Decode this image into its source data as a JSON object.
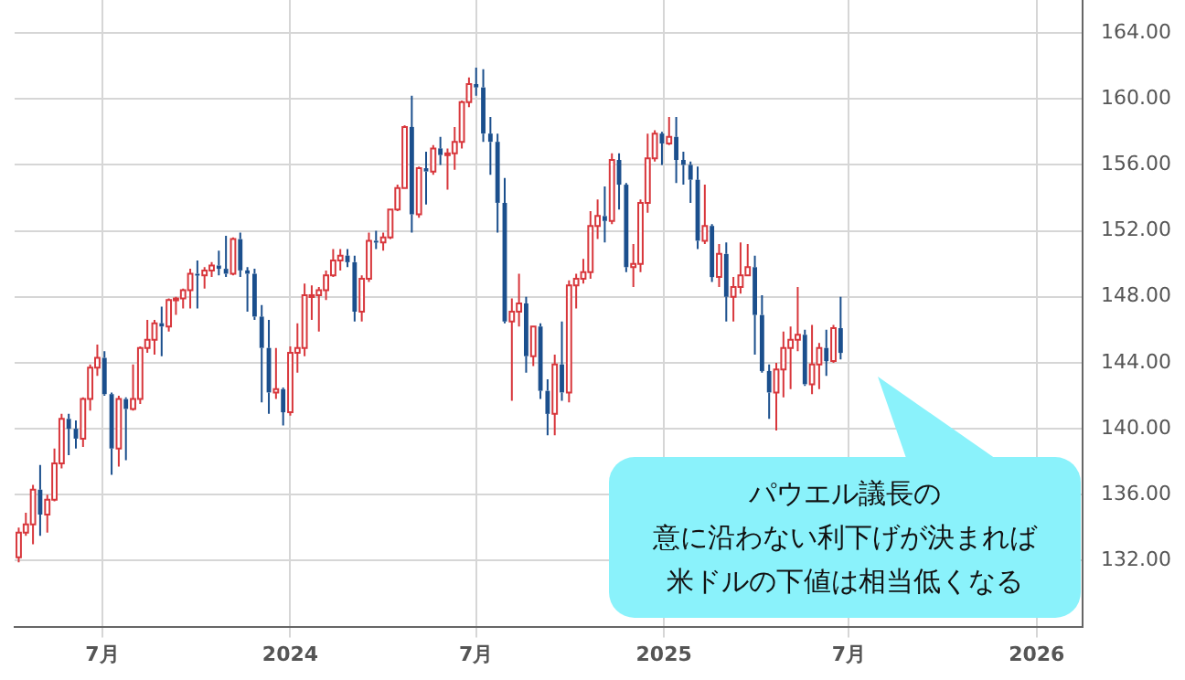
{
  "chart_data": {
    "type": "candlestick",
    "x": [
      "2023-04-10",
      "2023-04-17",
      "2023-04-24",
      "2023-05-01",
      "2023-05-08",
      "2023-05-15",
      "2023-05-22",
      "2023-05-29",
      "2023-06-05",
      "2023-06-12",
      "2023-06-19",
      "2023-06-26",
      "2023-07-03",
      "2023-07-10",
      "2023-07-17",
      "2023-07-24",
      "2023-07-31",
      "2023-08-07",
      "2023-08-14",
      "2023-08-21",
      "2023-08-28",
      "2023-09-04",
      "2023-09-11",
      "2023-09-18",
      "2023-09-25",
      "2023-10-02",
      "2023-10-09",
      "2023-10-16",
      "2023-10-23",
      "2023-10-30",
      "2023-11-06",
      "2023-11-13",
      "2023-11-20",
      "2023-11-27",
      "2023-12-04",
      "2023-12-11",
      "2023-12-18",
      "2023-12-25",
      "2024-01-01",
      "2024-01-08",
      "2024-01-15",
      "2024-01-22",
      "2024-01-29",
      "2024-02-05",
      "2024-02-12",
      "2024-02-19",
      "2024-02-26",
      "2024-03-04",
      "2024-03-11",
      "2024-03-18",
      "2024-03-25",
      "2024-04-01",
      "2024-04-08",
      "2024-04-15",
      "2024-04-22",
      "2024-04-29",
      "2024-05-06",
      "2024-05-13",
      "2024-05-20",
      "2024-05-27",
      "2024-06-03",
      "2024-06-10",
      "2024-06-17",
      "2024-06-24",
      "2024-07-01",
      "2024-07-08",
      "2024-07-15",
      "2024-07-22",
      "2024-07-29",
      "2024-08-05",
      "2024-08-12",
      "2024-08-19",
      "2024-08-26",
      "2024-09-02",
      "2024-09-09",
      "2024-09-16",
      "2024-09-23",
      "2024-09-30",
      "2024-10-07",
      "2024-10-14",
      "2024-10-21",
      "2024-10-28",
      "2024-11-04",
      "2024-11-11",
      "2024-11-18",
      "2024-11-25",
      "2024-12-02",
      "2024-12-09",
      "2024-12-16",
      "2024-12-23",
      "2024-12-30",
      "2025-01-06",
      "2025-01-13",
      "2025-01-20",
      "2025-01-27",
      "2025-02-03",
      "2025-02-10",
      "2025-02-17",
      "2025-02-24",
      "2025-03-03",
      "2025-03-10",
      "2025-03-17",
      "2025-03-24",
      "2025-03-31",
      "2025-04-07",
      "2025-04-14",
      "2025-04-21",
      "2025-04-28",
      "2025-05-05",
      "2025-05-12",
      "2025-05-19",
      "2025-05-26",
      "2025-06-02",
      "2025-06-09",
      "2025-06-16",
      "2025-06-23"
    ],
    "ohlc": [
      [
        132.2,
        134.0,
        131.9,
        133.7
      ],
      [
        133.7,
        134.9,
        133.5,
        134.2
      ],
      [
        134.2,
        136.6,
        133.0,
        136.3
      ],
      [
        136.3,
        137.8,
        133.5,
        134.8
      ],
      [
        134.8,
        136.0,
        133.7,
        135.7
      ],
      [
        135.7,
        138.8,
        135.6,
        137.9
      ],
      [
        137.9,
        140.9,
        137.6,
        140.6
      ],
      [
        140.6,
        140.9,
        138.4,
        140.0
      ],
      [
        140.0,
        140.5,
        138.8,
        139.4
      ],
      [
        139.4,
        141.9,
        138.9,
        141.8
      ],
      [
        141.8,
        143.9,
        141.1,
        143.7
      ],
      [
        143.7,
        145.1,
        143.2,
        144.3
      ],
      [
        144.3,
        144.7,
        142.0,
        142.1
      ],
      [
        142.1,
        142.2,
        137.2,
        138.8
      ],
      [
        138.8,
        142.0,
        137.7,
        141.8
      ],
      [
        141.8,
        141.9,
        138.1,
        141.2
      ],
      [
        141.2,
        143.9,
        141.1,
        141.8
      ],
      [
        141.8,
        145.0,
        141.5,
        144.9
      ],
      [
        144.9,
        146.6,
        144.6,
        145.4
      ],
      [
        145.4,
        146.6,
        144.5,
        146.4
      ],
      [
        146.4,
        147.4,
        144.4,
        146.2
      ],
      [
        146.2,
        147.9,
        145.9,
        147.8
      ],
      [
        147.8,
        148.0,
        146.9,
        147.9
      ],
      [
        147.9,
        148.5,
        147.3,
        148.4
      ],
      [
        148.4,
        149.7,
        147.3,
        149.4
      ],
      [
        149.4,
        150.2,
        147.3,
        149.3
      ],
      [
        149.3,
        149.8,
        148.5,
        149.6
      ],
      [
        149.6,
        150.1,
        149.2,
        149.9
      ],
      [
        149.9,
        150.8,
        149.3,
        149.7
      ],
      [
        149.7,
        151.7,
        149.2,
        149.4
      ],
      [
        149.4,
        151.6,
        149.3,
        151.5
      ],
      [
        151.5,
        151.9,
        149.2,
        149.6
      ],
      [
        149.6,
        149.8,
        147.1,
        149.4
      ],
      [
        149.4,
        149.7,
        146.6,
        146.8
      ],
      [
        146.8,
        147.5,
        141.6,
        144.9
      ],
      [
        144.9,
        146.6,
        140.9,
        142.2
      ],
      [
        142.2,
        144.9,
        141.8,
        142.4
      ],
      [
        142.4,
        142.5,
        140.2,
        141.0
      ],
      [
        141.0,
        145.0,
        140.8,
        144.6
      ],
      [
        144.6,
        146.4,
        143.4,
        144.9
      ],
      [
        144.9,
        148.8,
        144.4,
        148.1
      ],
      [
        148.1,
        148.7,
        146.6,
        148.1
      ],
      [
        148.1,
        148.6,
        145.9,
        148.4
      ],
      [
        148.4,
        149.6,
        147.8,
        149.3
      ],
      [
        149.3,
        150.9,
        149.2,
        150.2
      ],
      [
        150.2,
        150.9,
        149.6,
        150.5
      ],
      [
        150.5,
        150.9,
        149.8,
        150.1
      ],
      [
        150.1,
        150.5,
        146.5,
        147.1
      ],
      [
        147.1,
        149.3,
        146.5,
        149.1
      ],
      [
        149.1,
        151.9,
        148.9,
        151.4
      ],
      [
        151.4,
        152.0,
        150.9,
        151.3
      ],
      [
        151.3,
        151.9,
        150.8,
        151.6
      ],
      [
        151.6,
        153.3,
        151.5,
        153.3
      ],
      [
        153.3,
        154.8,
        153.2,
        154.6
      ],
      [
        154.6,
        158.4,
        154.6,
        158.3
      ],
      [
        158.3,
        160.2,
        151.9,
        153.0
      ],
      [
        153.0,
        155.9,
        152.8,
        155.8
      ],
      [
        155.8,
        156.8,
        153.6,
        155.6
      ],
      [
        155.6,
        157.2,
        155.4,
        157.0
      ],
      [
        157.0,
        157.7,
        156.0,
        156.6
      ],
      [
        156.6,
        157.0,
        154.5,
        156.7
      ],
      [
        156.7,
        158.3,
        155.7,
        157.4
      ],
      [
        157.4,
        159.9,
        157.0,
        159.8
      ],
      [
        159.8,
        161.3,
        159.5,
        160.9
      ],
      [
        160.9,
        161.9,
        160.2,
        160.7
      ],
      [
        160.7,
        161.8,
        157.4,
        157.9
      ],
      [
        157.9,
        158.9,
        155.4,
        157.4
      ],
      [
        157.4,
        157.9,
        151.9,
        153.7
      ],
      [
        153.7,
        155.2,
        146.4,
        146.5
      ],
      [
        146.5,
        147.9,
        141.7,
        147.1
      ],
      [
        147.1,
        149.4,
        146.2,
        147.6
      ],
      [
        147.6,
        148.0,
        143.4,
        144.4
      ],
      [
        144.4,
        146.2,
        143.8,
        146.2
      ],
      [
        146.2,
        146.4,
        141.8,
        142.3
      ],
      [
        142.3,
        143.0,
        139.6,
        140.9
      ],
      [
        140.9,
        144.5,
        139.6,
        143.9
      ],
      [
        143.9,
        146.5,
        141.7,
        142.2
      ],
      [
        142.2,
        149.0,
        141.6,
        148.7
      ],
      [
        148.7,
        149.4,
        147.3,
        149.1
      ],
      [
        149.1,
        150.3,
        148.8,
        149.5
      ],
      [
        149.5,
        153.2,
        149.1,
        152.3
      ],
      [
        152.3,
        153.9,
        151.5,
        152.9
      ],
      [
        152.9,
        154.7,
        151.3,
        152.6
      ],
      [
        152.6,
        156.7,
        152.4,
        156.3
      ],
      [
        156.3,
        156.7,
        153.3,
        154.8
      ],
      [
        154.8,
        154.9,
        149.5,
        149.8
      ],
      [
        149.8,
        151.2,
        148.6,
        150.0
      ],
      [
        150.0,
        153.9,
        149.5,
        153.7
      ],
      [
        153.7,
        157.9,
        153.1,
        156.4
      ],
      [
        156.4,
        158.1,
        156.2,
        157.9
      ],
      [
        157.9,
        158.0,
        156.0,
        157.3
      ],
      [
        157.3,
        158.9,
        157.2,
        157.7
      ],
      [
        157.7,
        158.9,
        154.9,
        156.3
      ],
      [
        156.3,
        156.8,
        154.8,
        156.0
      ],
      [
        156.0,
        156.2,
        153.7,
        155.1
      ],
      [
        155.1,
        155.9,
        150.9,
        151.4
      ],
      [
        151.4,
        154.8,
        151.2,
        152.3
      ],
      [
        152.3,
        152.4,
        148.9,
        149.2
      ],
      [
        149.2,
        151.2,
        148.6,
        150.6
      ],
      [
        150.6,
        151.3,
        146.5,
        148.0
      ],
      [
        148.0,
        149.2,
        146.5,
        148.6
      ],
      [
        148.6,
        151.3,
        148.2,
        149.3
      ],
      [
        149.3,
        151.2,
        149.3,
        149.8
      ],
      [
        149.8,
        150.5,
        144.5,
        146.9
      ],
      [
        146.9,
        148.1,
        143.4,
        143.5
      ],
      [
        143.5,
        143.9,
        140.6,
        142.2
      ],
      [
        142.2,
        144.0,
        139.9,
        143.6
      ],
      [
        143.6,
        145.9,
        141.9,
        144.9
      ],
      [
        144.9,
        146.2,
        142.4,
        145.4
      ],
      [
        145.4,
        148.6,
        144.7,
        145.7
      ],
      [
        145.7,
        146.0,
        142.6,
        142.7
      ],
      [
        142.7,
        146.3,
        142.1,
        143.9
      ],
      [
        143.9,
        145.2,
        142.4,
        144.9
      ],
      [
        144.9,
        146.0,
        143.2,
        144.1
      ],
      [
        144.1,
        146.3,
        144.0,
        146.1
      ],
      [
        146.1,
        148.0,
        144.2,
        144.6
      ]
    ],
    "xlim": [
      "2023-04-06",
      "2026-02-15"
    ],
    "xticks": [
      {
        "value": "2023-07",
        "label": "7月"
      },
      "2024",
      {
        "value": "2024-07",
        "label": "7月"
      },
      "2025",
      {
        "value": "2025-07",
        "label": "7月"
      },
      "2026"
    ],
    "ylim": [
      128,
      166
    ],
    "yticks": [
      {
        "value": 132,
        "label": "132.00"
      },
      {
        "value": 136,
        "label": "136.00"
      },
      {
        "value": 140,
        "label": "140.00"
      },
      {
        "value": 144,
        "label": "144.00"
      },
      {
        "value": 148,
        "label": "148.00"
      },
      {
        "value": 152,
        "label": "152.00"
      },
      {
        "value": 156,
        "label": "156.00"
      },
      {
        "value": 160,
        "label": "160.00"
      },
      {
        "value": 164,
        "label": "164.00"
      }
    ],
    "grid": true,
    "annotations": [
      "パウエル議長の",
      "意に沿わない利下げが決まれば",
      "米ドルの下値は相当低くなる"
    ]
  }
}
